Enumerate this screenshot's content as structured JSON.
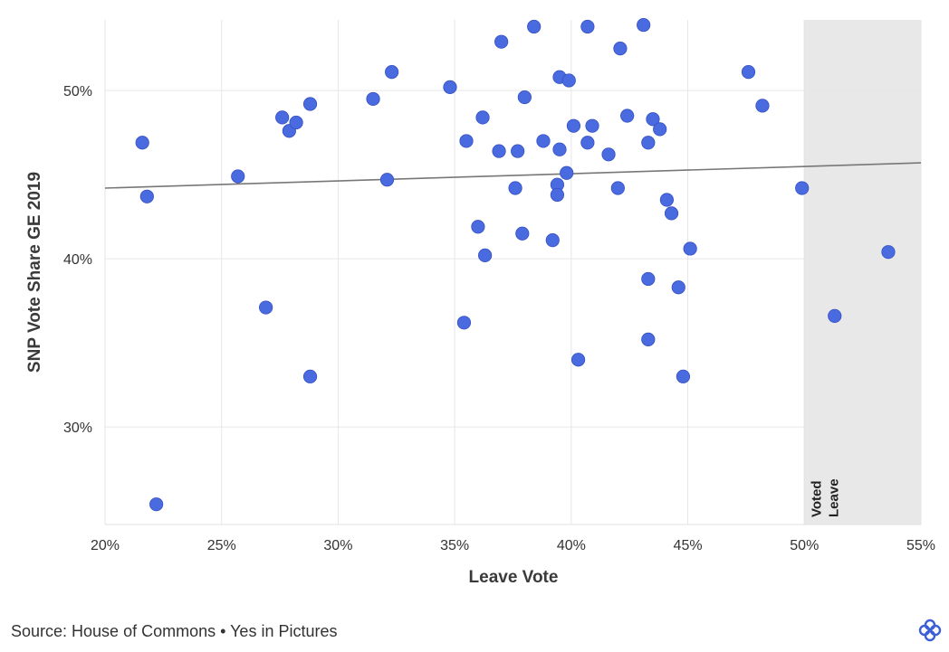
{
  "chart_data": {
    "type": "scatter",
    "xlabel": "Leave Vote",
    "ylabel": "SNP Vote Share GE 2019",
    "xlim": [
      20,
      55
    ],
    "ylim": [
      24.2,
      54.2
    ],
    "x_ticks": [
      20,
      25,
      30,
      35,
      40,
      45,
      50,
      55
    ],
    "x_tick_labels": [
      "20%",
      "25%",
      "30%",
      "35%",
      "40%",
      "45%",
      "50%",
      "55%"
    ],
    "y_ticks": [
      30,
      40,
      50
    ],
    "y_tick_labels": [
      "30%",
      "40%",
      "50%"
    ],
    "grid": true,
    "point_color": "#4a6be0",
    "trend_color": "#777777",
    "trendline": {
      "x": [
        20,
        55
      ],
      "y": [
        44.2,
        45.7
      ]
    },
    "shaded_region": {
      "x_start": 50,
      "x_end": 55,
      "label": "Voted Leave",
      "color": "#e8e8e8"
    },
    "points": [
      {
        "x": 21.6,
        "y": 46.9
      },
      {
        "x": 21.8,
        "y": 43.7
      },
      {
        "x": 22.2,
        "y": 25.4
      },
      {
        "x": 25.7,
        "y": 44.9
      },
      {
        "x": 26.9,
        "y": 37.1
      },
      {
        "x": 27.6,
        "y": 48.4
      },
      {
        "x": 27.9,
        "y": 47.6
      },
      {
        "x": 28.2,
        "y": 48.1
      },
      {
        "x": 28.8,
        "y": 49.2
      },
      {
        "x": 28.8,
        "y": 33.0
      },
      {
        "x": 31.5,
        "y": 49.5
      },
      {
        "x": 32.1,
        "y": 44.7
      },
      {
        "x": 32.3,
        "y": 51.1
      },
      {
        "x": 34.8,
        "y": 50.2
      },
      {
        "x": 35.4,
        "y": 36.2
      },
      {
        "x": 35.5,
        "y": 47.0
      },
      {
        "x": 36.0,
        "y": 41.9
      },
      {
        "x": 36.2,
        "y": 48.4
      },
      {
        "x": 36.3,
        "y": 40.2
      },
      {
        "x": 36.9,
        "y": 46.4
      },
      {
        "x": 37.0,
        "y": 52.9
      },
      {
        "x": 37.6,
        "y": 44.2
      },
      {
        "x": 37.7,
        "y": 46.4
      },
      {
        "x": 37.9,
        "y": 41.5
      },
      {
        "x": 38.0,
        "y": 49.6
      },
      {
        "x": 38.4,
        "y": 53.8
      },
      {
        "x": 38.8,
        "y": 47.0
      },
      {
        "x": 39.2,
        "y": 41.1
      },
      {
        "x": 39.4,
        "y": 44.4
      },
      {
        "x": 39.4,
        "y": 43.8
      },
      {
        "x": 39.5,
        "y": 50.8
      },
      {
        "x": 39.5,
        "y": 46.5
      },
      {
        "x": 39.8,
        "y": 45.1
      },
      {
        "x": 39.9,
        "y": 50.6
      },
      {
        "x": 40.1,
        "y": 47.9
      },
      {
        "x": 40.3,
        "y": 34.0
      },
      {
        "x": 40.7,
        "y": 53.8
      },
      {
        "x": 40.7,
        "y": 46.9
      },
      {
        "x": 40.9,
        "y": 47.9
      },
      {
        "x": 41.6,
        "y": 46.2
      },
      {
        "x": 42.0,
        "y": 44.2
      },
      {
        "x": 42.1,
        "y": 52.5
      },
      {
        "x": 42.4,
        "y": 48.5
      },
      {
        "x": 43.1,
        "y": 53.9
      },
      {
        "x": 43.3,
        "y": 46.9
      },
      {
        "x": 43.3,
        "y": 38.8
      },
      {
        "x": 43.3,
        "y": 35.2
      },
      {
        "x": 43.5,
        "y": 48.3
      },
      {
        "x": 43.8,
        "y": 47.7
      },
      {
        "x": 44.1,
        "y": 43.5
      },
      {
        "x": 44.3,
        "y": 42.7
      },
      {
        "x": 44.6,
        "y": 38.3
      },
      {
        "x": 44.8,
        "y": 33.0
      },
      {
        "x": 45.1,
        "y": 40.6
      },
      {
        "x": 47.6,
        "y": 51.1
      },
      {
        "x": 48.2,
        "y": 49.1
      },
      {
        "x": 49.9,
        "y": 44.2
      },
      {
        "x": 51.3,
        "y": 36.6
      },
      {
        "x": 53.6,
        "y": 40.4
      }
    ]
  },
  "footer": {
    "source": "Source: House of Commons • Yes in Pictures"
  },
  "logo": {
    "icon": "yes-in-pictures-logo-icon"
  }
}
